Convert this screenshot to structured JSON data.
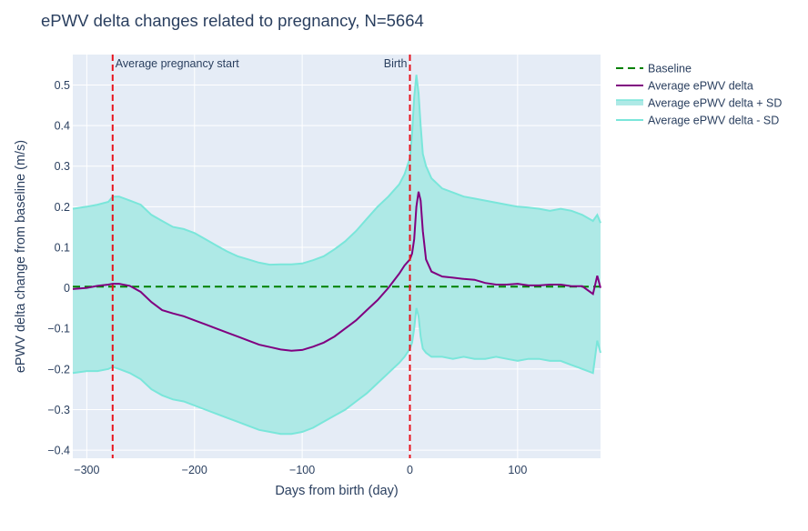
{
  "chart_data": {
    "type": "line",
    "title": "ePWV delta changes related to pregnancy, N=5664",
    "xlabel": "Days from birth (day)",
    "ylabel": "ePWV delta change from baseline (m/s)",
    "xlim": [
      -313,
      177
    ],
    "ylim": [
      -0.42,
      0.575
    ],
    "x_ticks": [
      -300,
      -200,
      -100,
      0,
      100
    ],
    "x_tick_labels": [
      "−300",
      "−200",
      "−100",
      "0",
      "100"
    ],
    "y_ticks": [
      -0.4,
      -0.3,
      -0.2,
      -0.1,
      0,
      0.1,
      0.2,
      0.3,
      0.4,
      0.5
    ],
    "y_tick_labels": [
      "−0.4",
      "−0.3",
      "−0.2",
      "−0.1",
      "0",
      "0.1",
      "0.2",
      "0.3",
      "0.4",
      "0.5"
    ],
    "grid": true,
    "legend_position": "top-right outside",
    "colors": {
      "baseline": "#008000",
      "mean": "#800080",
      "sd_line": "#7ae6da",
      "sd_fill": "#aee9e6",
      "vline": "#e8141e",
      "plot_bg": "#e5ecf6"
    },
    "series": [
      {
        "name": "Baseline",
        "style": "dashed",
        "x": [
          -313,
          177
        ],
        "y": [
          0.003,
          0.003
        ]
      },
      {
        "name": "Average ePWV delta",
        "x": [
          -313,
          -300,
          -290,
          -280,
          -276,
          -270,
          -260,
          -250,
          -240,
          -230,
          -220,
          -210,
          -200,
          -190,
          -180,
          -170,
          -160,
          -150,
          -140,
          -130,
          -120,
          -110,
          -100,
          -90,
          -80,
          -70,
          -60,
          -50,
          -40,
          -30,
          -20,
          -10,
          -5,
          0,
          2,
          4,
          6,
          8,
          10,
          12,
          15,
          20,
          30,
          40,
          50,
          60,
          70,
          80,
          90,
          100,
          110,
          120,
          130,
          140,
          150,
          160,
          170,
          174,
          177
        ],
        "y": [
          -0.003,
          0.0,
          0.005,
          0.008,
          0.01,
          0.01,
          0.005,
          -0.01,
          -0.035,
          -0.055,
          -0.063,
          -0.07,
          -0.08,
          -0.09,
          -0.1,
          -0.11,
          -0.12,
          -0.13,
          -0.14,
          -0.146,
          -0.152,
          -0.155,
          -0.153,
          -0.145,
          -0.135,
          -0.12,
          -0.1,
          -0.08,
          -0.055,
          -0.03,
          0.0,
          0.035,
          0.055,
          0.07,
          0.085,
          0.12,
          0.2,
          0.237,
          0.215,
          0.14,
          0.07,
          0.04,
          0.028,
          0.025,
          0.022,
          0.02,
          0.012,
          0.008,
          0.008,
          0.01,
          0.006,
          0.006,
          0.008,
          0.008,
          0.004,
          0.004,
          -0.015,
          0.03,
          0.0
        ]
      },
      {
        "name": "Average ePWV delta + SD",
        "x": [
          -313,
          -300,
          -290,
          -280,
          -276,
          -270,
          -260,
          -250,
          -240,
          -230,
          -220,
          -210,
          -200,
          -190,
          -180,
          -170,
          -160,
          -150,
          -140,
          -130,
          -120,
          -110,
          -100,
          -90,
          -80,
          -70,
          -60,
          -50,
          -40,
          -30,
          -20,
          -10,
          -5,
          0,
          2,
          4,
          6,
          8,
          10,
          12,
          15,
          20,
          30,
          40,
          50,
          60,
          70,
          80,
          90,
          100,
          110,
          120,
          130,
          140,
          150,
          160,
          170,
          174,
          177
        ],
        "y": [
          0.195,
          0.2,
          0.205,
          0.212,
          0.225,
          0.225,
          0.215,
          0.205,
          0.18,
          0.165,
          0.15,
          0.145,
          0.135,
          0.12,
          0.105,
          0.09,
          0.078,
          0.07,
          0.062,
          0.057,
          0.058,
          0.058,
          0.06,
          0.068,
          0.078,
          0.095,
          0.115,
          0.14,
          0.17,
          0.2,
          0.225,
          0.255,
          0.28,
          0.32,
          0.38,
          0.47,
          0.525,
          0.48,
          0.4,
          0.33,
          0.3,
          0.27,
          0.245,
          0.235,
          0.225,
          0.22,
          0.215,
          0.21,
          0.205,
          0.2,
          0.198,
          0.195,
          0.19,
          0.195,
          0.19,
          0.18,
          0.165,
          0.18,
          0.16
        ]
      },
      {
        "name": "Average ePWV delta - SD",
        "x": [
          -313,
          -300,
          -290,
          -280,
          -276,
          -270,
          -260,
          -250,
          -240,
          -230,
          -220,
          -210,
          -200,
          -190,
          -180,
          -170,
          -160,
          -150,
          -140,
          -130,
          -120,
          -110,
          -100,
          -90,
          -80,
          -70,
          -60,
          -50,
          -40,
          -30,
          -20,
          -10,
          -5,
          0,
          2,
          4,
          6,
          8,
          10,
          12,
          15,
          20,
          30,
          40,
          50,
          60,
          70,
          80,
          90,
          100,
          110,
          120,
          130,
          140,
          150,
          160,
          170,
          174,
          177
        ],
        "y": [
          -0.21,
          -0.205,
          -0.205,
          -0.2,
          -0.195,
          -0.2,
          -0.21,
          -0.225,
          -0.25,
          -0.265,
          -0.275,
          -0.28,
          -0.29,
          -0.3,
          -0.31,
          -0.32,
          -0.33,
          -0.34,
          -0.35,
          -0.355,
          -0.36,
          -0.36,
          -0.355,
          -0.345,
          -0.33,
          -0.315,
          -0.3,
          -0.28,
          -0.26,
          -0.235,
          -0.21,
          -0.185,
          -0.17,
          -0.15,
          -0.135,
          -0.1,
          -0.05,
          -0.07,
          -0.12,
          -0.15,
          -0.16,
          -0.17,
          -0.17,
          -0.175,
          -0.17,
          -0.175,
          -0.175,
          -0.17,
          -0.175,
          -0.18,
          -0.175,
          -0.175,
          -0.18,
          -0.18,
          -0.19,
          -0.2,
          -0.21,
          -0.13,
          -0.16
        ]
      }
    ],
    "vlines": [
      {
        "x": -276,
        "label": "Average pregnancy start"
      },
      {
        "x": 0,
        "label": "Birth"
      }
    ]
  }
}
